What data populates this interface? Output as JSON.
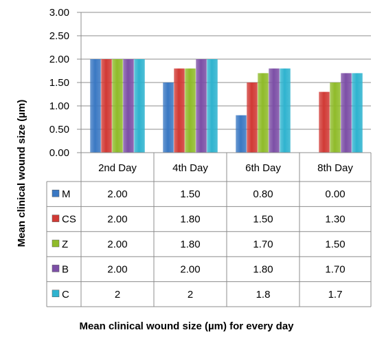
{
  "chart_data": {
    "type": "bar",
    "title": "",
    "xlabel": "Mean clinical wound size (µm) for every day",
    "ylabel": "Mean clinical  wound size (µm)",
    "ylim": [
      0,
      3
    ],
    "yticks": [
      "0.00",
      "0.50",
      "1.00",
      "1.50",
      "2.00",
      "2.50",
      "3.00"
    ],
    "grid": true,
    "legend": "data-table",
    "categories": [
      "2nd Day",
      "4th Day",
      "6th Day",
      "8th  Day"
    ],
    "series": [
      {
        "name": "M",
        "color": "#3a78c3",
        "values": [
          2.0,
          1.5,
          0.8,
          0.0
        ],
        "labels": [
          "2.00",
          "1.50",
          "0.80",
          "0.00"
        ]
      },
      {
        "name": "CS",
        "color": "#d13a35",
        "values": [
          2.0,
          1.8,
          1.5,
          1.3
        ],
        "labels": [
          "2.00",
          "1.80",
          "1.50",
          "1.30"
        ]
      },
      {
        "name": "Z",
        "color": "#8fbb2a",
        "values": [
          2.0,
          1.8,
          1.7,
          1.5
        ],
        "labels": [
          "2.00",
          "1.80",
          "1.70",
          "1.50"
        ]
      },
      {
        "name": "B",
        "color": "#7c4fa6",
        "values": [
          2.0,
          2.0,
          1.8,
          1.7
        ],
        "labels": [
          "2.00",
          "2.00",
          "1.80",
          "1.70"
        ]
      },
      {
        "name": "C",
        "color": "#2fb3cf",
        "values": [
          2,
          2,
          1.8,
          1.7
        ],
        "labels": [
          "2",
          "2",
          "1.8",
          "1.7"
        ]
      }
    ]
  }
}
